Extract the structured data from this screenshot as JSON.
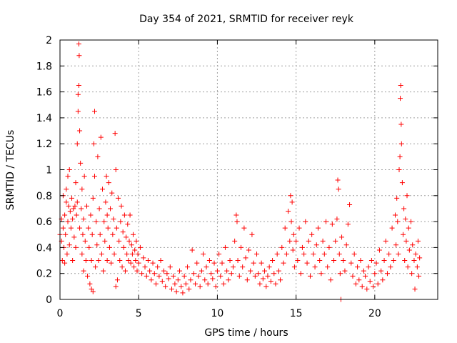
{
  "chart_data": {
    "type": "scatter",
    "title": "Day 354 of 2021, SRMTID for receiver reyk",
    "xlabel": "GPS time / hours",
    "ylabel": "SRMTID / TECUs",
    "xlim": [
      0,
      24
    ],
    "ylim": [
      0,
      2
    ],
    "xticks": [
      0,
      5,
      10,
      15,
      20
    ],
    "xtick_labels": [
      "0",
      "5",
      "10",
      "15",
      "20"
    ],
    "yticks": [
      0,
      0.2,
      0.4,
      0.6,
      0.8,
      1,
      1.2,
      1.4,
      1.6,
      1.8,
      2
    ],
    "ytick_labels": [
      "0",
      "0.2",
      "0.4",
      "0.6",
      "0.8",
      "1",
      "1.2",
      "1.4",
      "1.6",
      "1.8",
      "2"
    ],
    "grid": true,
    "marker": "+",
    "color": "#ff0000",
    "series": [
      {
        "name": "SRMTID",
        "points": [
          [
            0.0,
            0.5
          ],
          [
            0.1,
            0.45
          ],
          [
            0.1,
            0.62
          ],
          [
            0.15,
            0.3
          ],
          [
            0.2,
            0.55
          ],
          [
            0.2,
            0.8
          ],
          [
            0.25,
            0.4
          ],
          [
            0.3,
            0.65
          ],
          [
            0.3,
            0.28
          ],
          [
            0.35,
            0.5
          ],
          [
            0.4,
            0.75
          ],
          [
            0.4,
            0.85
          ],
          [
            0.45,
            0.35
          ],
          [
            0.5,
            0.6
          ],
          [
            0.5,
            0.95
          ],
          [
            0.55,
            0.72
          ],
          [
            0.6,
            0.42
          ],
          [
            0.6,
            1.0
          ],
          [
            0.65,
            0.68
          ],
          [
            0.7,
            0.55
          ],
          [
            0.75,
            0.78
          ],
          [
            0.8,
            0.3
          ],
          [
            0.8,
            0.62
          ],
          [
            0.85,
            0.7
          ],
          [
            0.9,
            0.48
          ],
          [
            0.95,
            0.72
          ],
          [
            1.0,
            0.4
          ],
          [
            1.0,
            0.9
          ],
          [
            1.05,
            0.65
          ],
          [
            1.1,
            1.2
          ],
          [
            1.1,
            0.75
          ],
          [
            1.15,
            1.45
          ],
          [
            1.15,
            1.58
          ],
          [
            1.2,
            1.65
          ],
          [
            1.2,
            1.97
          ],
          [
            1.22,
            1.88
          ],
          [
            1.25,
            1.3
          ],
          [
            1.25,
            0.55
          ],
          [
            1.3,
            1.05
          ],
          [
            1.35,
            0.7
          ],
          [
            1.4,
            0.35
          ],
          [
            1.4,
            0.85
          ],
          [
            1.45,
            0.5
          ],
          [
            1.5,
            0.22
          ],
          [
            1.5,
            0.62
          ],
          [
            1.55,
            0.95
          ],
          [
            1.6,
            0.45
          ],
          [
            1.65,
            0.3
          ],
          [
            1.7,
            0.72
          ],
          [
            1.75,
            0.18
          ],
          [
            1.8,
            0.55
          ],
          [
            1.85,
            0.4
          ],
          [
            1.9,
            0.12
          ],
          [
            1.95,
            0.65
          ],
          [
            2.0,
            0.08
          ],
          [
            2.0,
            0.3
          ],
          [
            2.05,
            0.5
          ],
          [
            2.1,
            0.06
          ],
          [
            2.1,
            0.78
          ],
          [
            2.15,
            1.2
          ],
          [
            2.2,
            1.45
          ],
          [
            2.2,
            0.95
          ],
          [
            2.25,
            0.25
          ],
          [
            2.3,
            0.6
          ],
          [
            2.35,
            0.42
          ],
          [
            2.4,
            1.1
          ],
          [
            2.45,
            0.3
          ],
          [
            2.5,
            0.7
          ],
          [
            2.55,
            0.5
          ],
          [
            2.6,
            1.25
          ],
          [
            2.65,
            0.35
          ],
          [
            2.7,
            0.85
          ],
          [
            2.75,
            0.22
          ],
          [
            2.8,
            0.6
          ],
          [
            2.85,
            0.45
          ],
          [
            2.9,
            0.75
          ],
          [
            2.95,
            0.95
          ],
          [
            3.0,
            0.3
          ],
          [
            3.0,
            0.65
          ],
          [
            3.05,
            0.55
          ],
          [
            3.1,
            0.9
          ],
          [
            3.15,
            0.4
          ],
          [
            3.2,
            0.7
          ],
          [
            3.25,
            0.28
          ],
          [
            3.3,
            0.82
          ],
          [
            3.35,
            0.5
          ],
          [
            3.4,
            0.62
          ],
          [
            3.45,
            0.35
          ],
          [
            3.5,
            1.28
          ],
          [
            3.55,
            1.0
          ],
          [
            3.55,
            0.1
          ],
          [
            3.6,
            0.55
          ],
          [
            3.65,
            0.15
          ],
          [
            3.7,
            0.78
          ],
          [
            3.75,
            0.45
          ],
          [
            3.8,
            0.3
          ],
          [
            3.85,
            0.6
          ],
          [
            3.9,
            0.72
          ],
          [
            3.95,
            0.25
          ],
          [
            4.0,
            0.52
          ],
          [
            4.05,
            0.4
          ],
          [
            4.1,
            0.65
          ],
          [
            4.15,
            0.22
          ],
          [
            4.2,
            0.48
          ],
          [
            4.25,
            0.35
          ],
          [
            4.3,
            0.58
          ],
          [
            4.35,
            0.3
          ],
          [
            4.4,
            0.45
          ],
          [
            4.45,
            0.65
          ],
          [
            4.5,
            0.28
          ],
          [
            4.55,
            0.42
          ],
          [
            4.6,
            0.35
          ],
          [
            4.65,
            0.5
          ],
          [
            4.7,
            0.25
          ],
          [
            4.75,
            0.38
          ],
          [
            4.8,
            0.3
          ],
          [
            4.85,
            0.45
          ],
          [
            4.9,
            0.22
          ],
          [
            4.95,
            0.35
          ],
          [
            5.0,
            0.28
          ],
          [
            5.1,
            0.4
          ],
          [
            5.2,
            0.2
          ],
          [
            5.3,
            0.32
          ],
          [
            5.4,
            0.25
          ],
          [
            5.5,
            0.18
          ],
          [
            5.6,
            0.3
          ],
          [
            5.7,
            0.22
          ],
          [
            5.8,
            0.15
          ],
          [
            5.9,
            0.28
          ],
          [
            6.0,
            0.2
          ],
          [
            6.1,
            0.12
          ],
          [
            6.2,
            0.25
          ],
          [
            6.3,
            0.18
          ],
          [
            6.4,
            0.3
          ],
          [
            6.5,
            0.14
          ],
          [
            6.6,
            0.22
          ],
          [
            6.7,
            0.1
          ],
          [
            6.8,
            0.2
          ],
          [
            6.9,
            0.16
          ],
          [
            7.0,
            0.25
          ],
          [
            7.1,
            0.08
          ],
          [
            7.2,
            0.18
          ],
          [
            7.3,
            0.12
          ],
          [
            7.4,
            0.06
          ],
          [
            7.5,
            0.15
          ],
          [
            7.6,
            0.22
          ],
          [
            7.7,
            0.1
          ],
          [
            7.8,
            0.05
          ],
          [
            7.9,
            0.18
          ],
          [
            8.0,
            0.12
          ],
          [
            8.1,
            0.25
          ],
          [
            8.2,
            0.08
          ],
          [
            8.3,
            0.15
          ],
          [
            8.4,
            0.38
          ],
          [
            8.5,
            0.2
          ],
          [
            8.6,
            0.12
          ],
          [
            8.7,
            0.28
          ],
          [
            8.8,
            0.18
          ],
          [
            8.9,
            0.1
          ],
          [
            9.0,
            0.22
          ],
          [
            9.1,
            0.35
          ],
          [
            9.2,
            0.15
          ],
          [
            9.3,
            0.25
          ],
          [
            9.4,
            0.12
          ],
          [
            9.5,
            0.3
          ],
          [
            9.6,
            0.2
          ],
          [
            9.7,
            0.16
          ],
          [
            9.8,
            0.28
          ],
          [
            9.9,
            0.1
          ],
          [
            10.0,
            0.22
          ],
          [
            10.1,
            0.35
          ],
          [
            10.2,
            0.18
          ],
          [
            10.3,
            0.28
          ],
          [
            10.4,
            0.12
          ],
          [
            10.5,
            0.4
          ],
          [
            10.6,
            0.22
          ],
          [
            10.7,
            0.15
          ],
          [
            10.8,
            0.3
          ],
          [
            10.9,
            0.2
          ],
          [
            11.0,
            0.25
          ],
          [
            11.1,
            0.45
          ],
          [
            11.2,
            0.65
          ],
          [
            11.25,
            0.6
          ],
          [
            11.3,
            0.3
          ],
          [
            11.4,
            0.18
          ],
          [
            11.5,
            0.4
          ],
          [
            11.6,
            0.25
          ],
          [
            11.7,
            0.55
          ],
          [
            11.8,
            0.32
          ],
          [
            11.9,
            0.15
          ],
          [
            12.0,
            0.38
          ],
          [
            12.1,
            0.22
          ],
          [
            12.2,
            0.5
          ],
          [
            12.3,
            0.28
          ],
          [
            12.4,
            0.18
          ],
          [
            12.5,
            0.35
          ],
          [
            12.6,
            0.2
          ],
          [
            12.7,
            0.12
          ],
          [
            12.8,
            0.28
          ],
          [
            12.9,
            0.16
          ],
          [
            13.0,
            0.22
          ],
          [
            13.1,
            0.1
          ],
          [
            13.2,
            0.18
          ],
          [
            13.3,
            0.25
          ],
          [
            13.4,
            0.14
          ],
          [
            13.5,
            0.3
          ],
          [
            13.6,
            0.2
          ],
          [
            13.7,
            0.12
          ],
          [
            13.8,
            0.35
          ],
          [
            13.9,
            0.22
          ],
          [
            14.0,
            0.15
          ],
          [
            14.1,
            0.4
          ],
          [
            14.2,
            0.28
          ],
          [
            14.3,
            0.55
          ],
          [
            14.4,
            0.35
          ],
          [
            14.5,
            0.68
          ],
          [
            14.6,
            0.45
          ],
          [
            14.65,
            0.8
          ],
          [
            14.7,
            0.6
          ],
          [
            14.75,
            0.75
          ],
          [
            14.8,
            0.38
          ],
          [
            14.85,
            0.5
          ],
          [
            14.9,
            0.25
          ],
          [
            15.0,
            0.45
          ],
          [
            15.1,
            0.3
          ],
          [
            15.2,
            0.55
          ],
          [
            15.3,
            0.2
          ],
          [
            15.4,
            0.4
          ],
          [
            15.5,
            0.35
          ],
          [
            15.6,
            0.6
          ],
          [
            15.7,
            0.28
          ],
          [
            15.8,
            0.45
          ],
          [
            15.9,
            0.18
          ],
          [
            16.0,
            0.5
          ],
          [
            16.1,
            0.35
          ],
          [
            16.2,
            0.25
          ],
          [
            16.3,
            0.42
          ],
          [
            16.4,
            0.55
          ],
          [
            16.5,
            0.3
          ],
          [
            16.6,
            0.2
          ],
          [
            16.7,
            0.45
          ],
          [
            16.8,
            0.35
          ],
          [
            16.9,
            0.6
          ],
          [
            17.0,
            0.25
          ],
          [
            17.1,
            0.4
          ],
          [
            17.2,
            0.15
          ],
          [
            17.3,
            0.58
          ],
          [
            17.4,
            0.3
          ],
          [
            17.5,
            0.45
          ],
          [
            17.6,
            0.62
          ],
          [
            17.65,
            0.92
          ],
          [
            17.7,
            0.85
          ],
          [
            17.75,
            0.35
          ],
          [
            17.8,
            0.2
          ],
          [
            17.85,
            0.0
          ],
          [
            17.9,
            0.48
          ],
          [
            18.0,
            0.3
          ],
          [
            18.1,
            0.22
          ],
          [
            18.2,
            0.42
          ],
          [
            18.3,
            0.58
          ],
          [
            18.4,
            0.73
          ],
          [
            18.5,
            0.28
          ],
          [
            18.6,
            0.18
          ],
          [
            18.7,
            0.35
          ],
          [
            18.8,
            0.12
          ],
          [
            18.9,
            0.25
          ],
          [
            19.0,
            0.15
          ],
          [
            19.1,
            0.3
          ],
          [
            19.2,
            0.1
          ],
          [
            19.3,
            0.22
          ],
          [
            19.4,
            0.18
          ],
          [
            19.5,
            0.08
          ],
          [
            19.6,
            0.25
          ],
          [
            19.7,
            0.14
          ],
          [
            19.8,
            0.3
          ],
          [
            19.9,
            0.1
          ],
          [
            20.0,
            0.2
          ],
          [
            20.1,
            0.28
          ],
          [
            20.2,
            0.12
          ],
          [
            20.3,
            0.38
          ],
          [
            20.4,
            0.22
          ],
          [
            20.5,
            0.15
          ],
          [
            20.6,
            0.3
          ],
          [
            20.7,
            0.45
          ],
          [
            20.8,
            0.2
          ],
          [
            20.9,
            0.35
          ],
          [
            21.0,
            0.25
          ],
          [
            21.1,
            0.55
          ],
          [
            21.2,
            0.3
          ],
          [
            21.3,
            0.65
          ],
          [
            21.35,
            0.42
          ],
          [
            21.4,
            0.78
          ],
          [
            21.45,
            0.6
          ],
          [
            21.5,
            0.35
          ],
          [
            21.55,
            1.0
          ],
          [
            21.6,
            1.1
          ],
          [
            21.62,
            1.55
          ],
          [
            21.65,
            1.65
          ],
          [
            21.68,
            1.35
          ],
          [
            21.7,
            1.2
          ],
          [
            21.75,
            0.9
          ],
          [
            21.8,
            0.5
          ],
          [
            21.85,
            0.7
          ],
          [
            21.9,
            0.3
          ],
          [
            21.95,
            0.62
          ],
          [
            22.0,
            0.45
          ],
          [
            22.05,
            0.8
          ],
          [
            22.1,
            0.25
          ],
          [
            22.15,
            0.55
          ],
          [
            22.2,
            0.38
          ],
          [
            22.3,
            0.6
          ],
          [
            22.35,
            0.2
          ],
          [
            22.4,
            0.42
          ],
          [
            22.5,
            0.3
          ],
          [
            22.55,
            0.08
          ],
          [
            22.6,
            0.35
          ],
          [
            22.7,
            0.25
          ],
          [
            22.75,
            0.45
          ],
          [
            22.8,
            0.18
          ],
          [
            22.85,
            0.32
          ]
        ]
      }
    ]
  }
}
